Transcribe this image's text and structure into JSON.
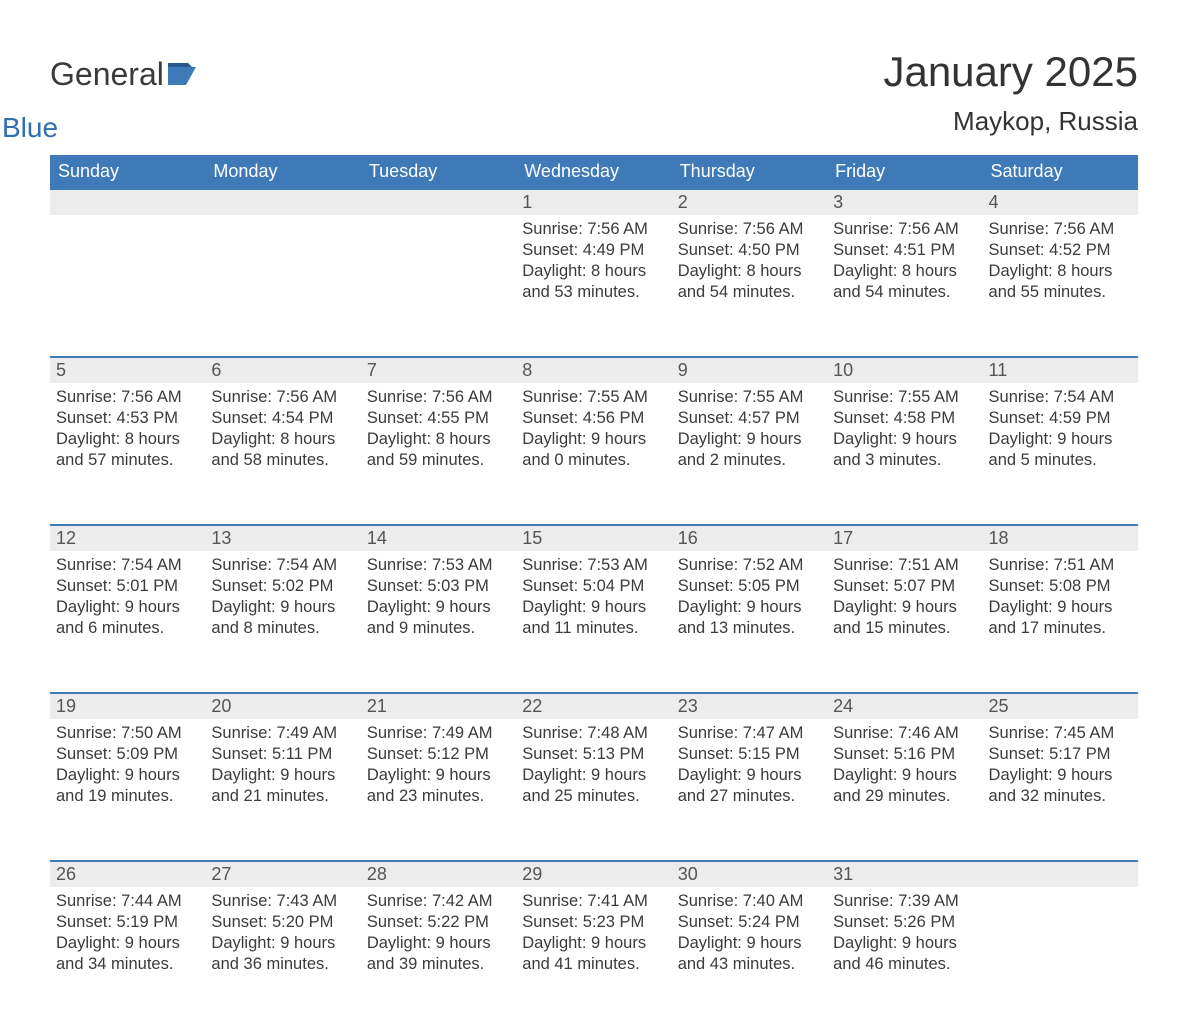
{
  "logo": {
    "text_general": "General",
    "text_blue": "Blue",
    "flag_color": "#3e7ab8"
  },
  "title": {
    "month_year": "January 2025",
    "location": "Maykop, Russia"
  },
  "colors": {
    "header_bg": "#3e7ab8",
    "header_text": "#ffffff",
    "daynum_bg": "#ececec",
    "daynum_border": "#3e7ab8",
    "body_bg": "#ffffff",
    "text": "#3b3b3b"
  },
  "day_headers": [
    "Sunday",
    "Monday",
    "Tuesday",
    "Wednesday",
    "Thursday",
    "Friday",
    "Saturday"
  ],
  "weeks": [
    {
      "nums": [
        "",
        "",
        "",
        "1",
        "2",
        "3",
        "4"
      ],
      "cells": [
        null,
        null,
        null,
        {
          "sunrise": "7:56 AM",
          "sunset": "4:49 PM",
          "daylight_h": "8",
          "daylight_m": "53"
        },
        {
          "sunrise": "7:56 AM",
          "sunset": "4:50 PM",
          "daylight_h": "8",
          "daylight_m": "54"
        },
        {
          "sunrise": "7:56 AM",
          "sunset": "4:51 PM",
          "daylight_h": "8",
          "daylight_m": "54"
        },
        {
          "sunrise": "7:56 AM",
          "sunset": "4:52 PM",
          "daylight_h": "8",
          "daylight_m": "55"
        }
      ]
    },
    {
      "nums": [
        "5",
        "6",
        "7",
        "8",
        "9",
        "10",
        "11"
      ],
      "cells": [
        {
          "sunrise": "7:56 AM",
          "sunset": "4:53 PM",
          "daylight_h": "8",
          "daylight_m": "57"
        },
        {
          "sunrise": "7:56 AM",
          "sunset": "4:54 PM",
          "daylight_h": "8",
          "daylight_m": "58"
        },
        {
          "sunrise": "7:56 AM",
          "sunset": "4:55 PM",
          "daylight_h": "8",
          "daylight_m": "59"
        },
        {
          "sunrise": "7:55 AM",
          "sunset": "4:56 PM",
          "daylight_h": "9",
          "daylight_m": "0"
        },
        {
          "sunrise": "7:55 AM",
          "sunset": "4:57 PM",
          "daylight_h": "9",
          "daylight_m": "2"
        },
        {
          "sunrise": "7:55 AM",
          "sunset": "4:58 PM",
          "daylight_h": "9",
          "daylight_m": "3"
        },
        {
          "sunrise": "7:54 AM",
          "sunset": "4:59 PM",
          "daylight_h": "9",
          "daylight_m": "5"
        }
      ]
    },
    {
      "nums": [
        "12",
        "13",
        "14",
        "15",
        "16",
        "17",
        "18"
      ],
      "cells": [
        {
          "sunrise": "7:54 AM",
          "sunset": "5:01 PM",
          "daylight_h": "9",
          "daylight_m": "6"
        },
        {
          "sunrise": "7:54 AM",
          "sunset": "5:02 PM",
          "daylight_h": "9",
          "daylight_m": "8"
        },
        {
          "sunrise": "7:53 AM",
          "sunset": "5:03 PM",
          "daylight_h": "9",
          "daylight_m": "9"
        },
        {
          "sunrise": "7:53 AM",
          "sunset": "5:04 PM",
          "daylight_h": "9",
          "daylight_m": "11"
        },
        {
          "sunrise": "7:52 AM",
          "sunset": "5:05 PM",
          "daylight_h": "9",
          "daylight_m": "13"
        },
        {
          "sunrise": "7:51 AM",
          "sunset": "5:07 PM",
          "daylight_h": "9",
          "daylight_m": "15"
        },
        {
          "sunrise": "7:51 AM",
          "sunset": "5:08 PM",
          "daylight_h": "9",
          "daylight_m": "17"
        }
      ]
    },
    {
      "nums": [
        "19",
        "20",
        "21",
        "22",
        "23",
        "24",
        "25"
      ],
      "cells": [
        {
          "sunrise": "7:50 AM",
          "sunset": "5:09 PM",
          "daylight_h": "9",
          "daylight_m": "19"
        },
        {
          "sunrise": "7:49 AM",
          "sunset": "5:11 PM",
          "daylight_h": "9",
          "daylight_m": "21"
        },
        {
          "sunrise": "7:49 AM",
          "sunset": "5:12 PM",
          "daylight_h": "9",
          "daylight_m": "23"
        },
        {
          "sunrise": "7:48 AM",
          "sunset": "5:13 PM",
          "daylight_h": "9",
          "daylight_m": "25"
        },
        {
          "sunrise": "7:47 AM",
          "sunset": "5:15 PM",
          "daylight_h": "9",
          "daylight_m": "27"
        },
        {
          "sunrise": "7:46 AM",
          "sunset": "5:16 PM",
          "daylight_h": "9",
          "daylight_m": "29"
        },
        {
          "sunrise": "7:45 AM",
          "sunset": "5:17 PM",
          "daylight_h": "9",
          "daylight_m": "32"
        }
      ]
    },
    {
      "nums": [
        "26",
        "27",
        "28",
        "29",
        "30",
        "31",
        ""
      ],
      "cells": [
        {
          "sunrise": "7:44 AM",
          "sunset": "5:19 PM",
          "daylight_h": "9",
          "daylight_m": "34"
        },
        {
          "sunrise": "7:43 AM",
          "sunset": "5:20 PM",
          "daylight_h": "9",
          "daylight_m": "36"
        },
        {
          "sunrise": "7:42 AM",
          "sunset": "5:22 PM",
          "daylight_h": "9",
          "daylight_m": "39"
        },
        {
          "sunrise": "7:41 AM",
          "sunset": "5:23 PM",
          "daylight_h": "9",
          "daylight_m": "41"
        },
        {
          "sunrise": "7:40 AM",
          "sunset": "5:24 PM",
          "daylight_h": "9",
          "daylight_m": "43"
        },
        {
          "sunrise": "7:39 AM",
          "sunset": "5:26 PM",
          "daylight_h": "9",
          "daylight_m": "46"
        },
        null
      ]
    }
  ],
  "labels": {
    "sunrise": "Sunrise: ",
    "sunset": "Sunset: ",
    "daylight_prefix": "Daylight: ",
    "hours_word": " hours",
    "and_word": "and ",
    "minutes_word": " minutes."
  }
}
